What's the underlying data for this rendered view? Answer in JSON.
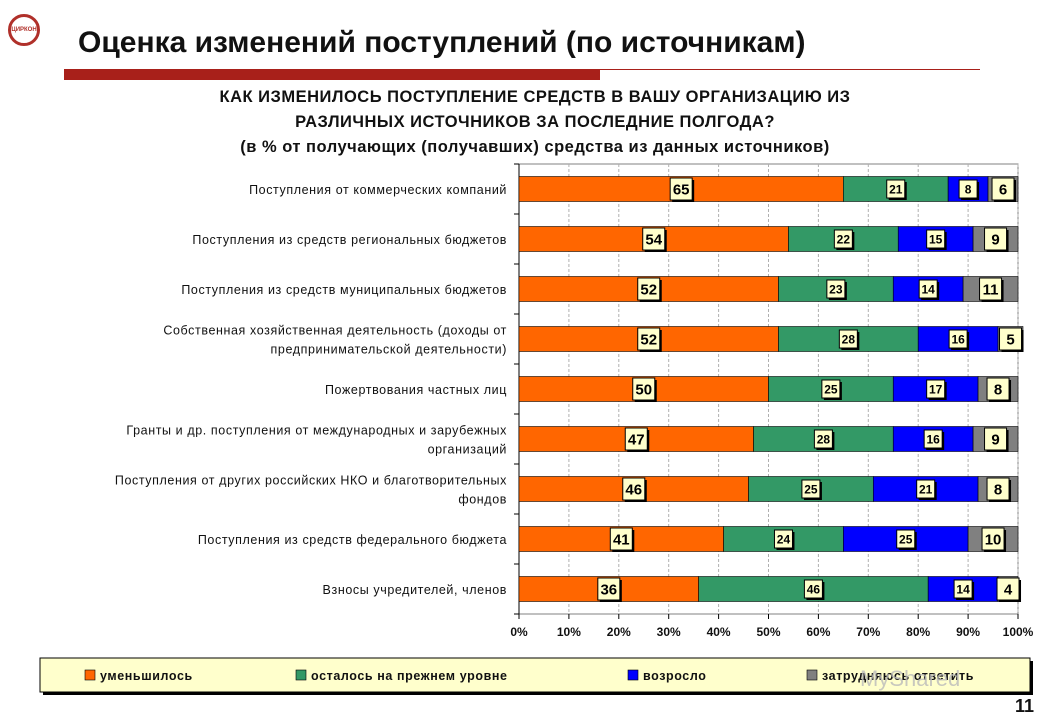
{
  "logo_text": "ЦИРКОН",
  "slide_title": "Оценка изменений поступлений (по источникам)",
  "page_number": "11",
  "watermark": "MyShared",
  "colors": {
    "decreased": "#ff6600",
    "same": "#339966",
    "increased": "#0000ff",
    "dont_know": "#808080",
    "rule": "#a8201a"
  },
  "chart_data": {
    "type": "bar",
    "orientation": "horizontal",
    "stacked": true,
    "title_lines": [
      "КАК ИЗМЕНИЛОСЬ ПОСТУПЛЕНИЕ СРЕДСТВ В ВАШУ ОРГАНИЗАЦИЮ ИЗ",
      "РАЗЛИЧНЫХ ИСТОЧНИКОВ ЗА ПОСЛЕДНИЕ ПОЛГОДА?",
      "(в % от получающих (получавших) средства из данных источников)"
    ],
    "categories": [
      [
        "Поступления от коммерческих компаний"
      ],
      [
        "Поступления из средств региональных бюджетов"
      ],
      [
        "Поступления из средств муниципальных бюджетов"
      ],
      [
        "Собственная хозяйственная деятельность (доходы от",
        "предпринимательской деятельности)"
      ],
      [
        "Пожертвования частных лиц"
      ],
      [
        "Гранты и др. поступления от международных и зарубежных",
        "организаций"
      ],
      [
        "Поступления от других российских НКО и благотворительных",
        "фондов"
      ],
      [
        "Поступления из средств федерального бюджета"
      ],
      [
        "Взносы учредителей, членов"
      ]
    ],
    "series": [
      {
        "name": "уменьшилось",
        "values": [
          65,
          54,
          52,
          52,
          50,
          47,
          46,
          41,
          36
        ]
      },
      {
        "name": "осталось на прежнем уровне",
        "values": [
          21,
          22,
          23,
          28,
          25,
          28,
          25,
          24,
          46
        ]
      },
      {
        "name": "возросло",
        "values": [
          8,
          15,
          14,
          16,
          17,
          16,
          21,
          25,
          14
        ]
      },
      {
        "name": "затрудняюсь ответить",
        "values": [
          6,
          9,
          11,
          5,
          8,
          9,
          8,
          10,
          4
        ]
      }
    ],
    "xlim": [
      0,
      100
    ],
    "x_ticks": [
      "0%",
      "10%",
      "20%",
      "30%",
      "40%",
      "50%",
      "60%",
      "70%",
      "80%",
      "90%",
      "100%"
    ],
    "grid": "vertical",
    "legend_position": "bottom"
  }
}
